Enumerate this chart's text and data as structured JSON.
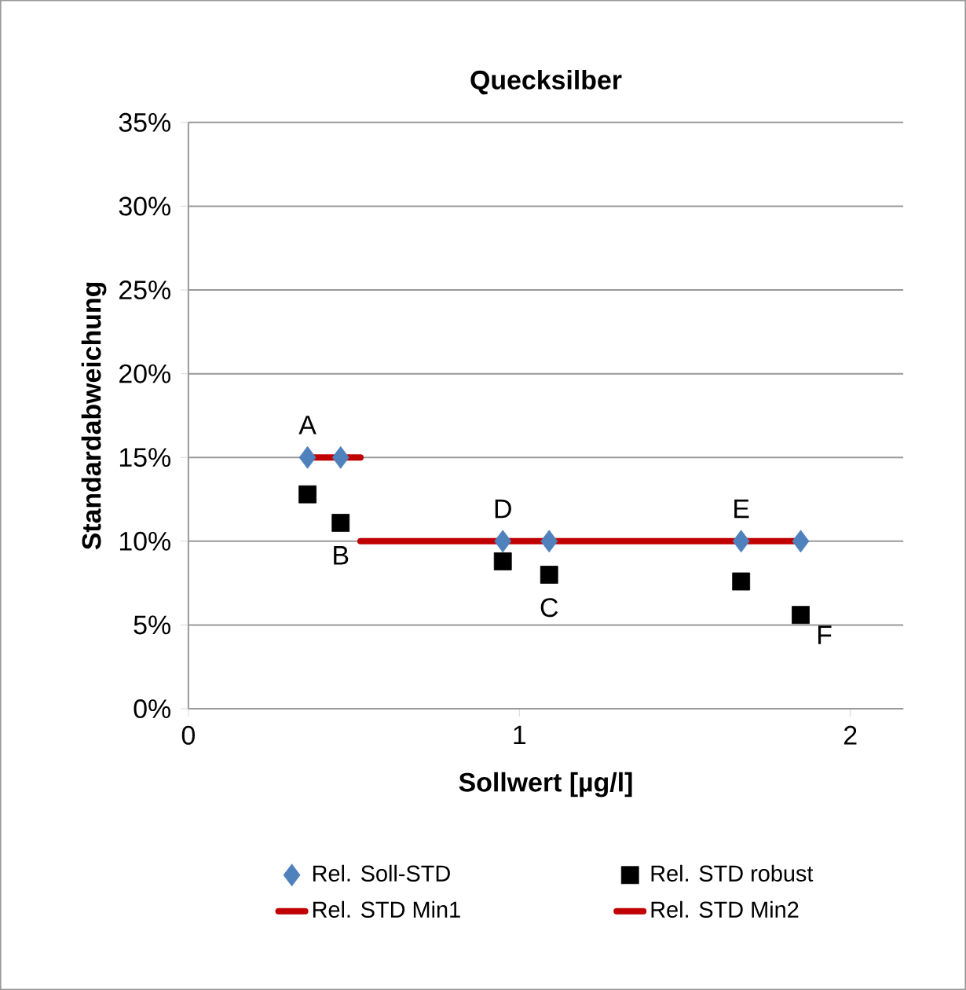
{
  "chart_data": {
    "type": "scatter",
    "title": "Quecksilber",
    "xlabel": "Sollwert [µg/l]",
    "ylabel": "Standardabweichung",
    "xlim": [
      0,
      2.16
    ],
    "xticks": [
      0,
      1,
      2
    ],
    "ylim": [
      0,
      0.35
    ],
    "yticks": [
      {
        "value": 0,
        "label": "0%"
      },
      {
        "value": 0.05,
        "label": "5%"
      },
      {
        "value": 0.1,
        "label": "10%"
      },
      {
        "value": 0.15,
        "label": "15%"
      },
      {
        "value": 0.2,
        "label": "20%"
      },
      {
        "value": 0.25,
        "label": "25%"
      },
      {
        "value": 0.3,
        "label": "30%"
      },
      {
        "value": 0.35,
        "label": "35%"
      }
    ],
    "grid": "y",
    "legend": "bottom",
    "series": [
      {
        "name": "Rel. Soll-STD",
        "marker": "diamond",
        "color": "#4f81bd",
        "x": [
          0.36,
          0.46,
          0.95,
          1.09,
          1.67,
          1.85
        ],
        "values": [
          0.15,
          0.15,
          0.1,
          0.1,
          0.1,
          0.1
        ]
      },
      {
        "name": "Rel. STD robust",
        "marker": "square",
        "color": "#000000",
        "x": [
          0.36,
          0.46,
          0.95,
          1.09,
          1.67,
          1.85
        ],
        "values": [
          0.128,
          0.111,
          0.088,
          0.08,
          0.076,
          0.056
        ]
      },
      {
        "name": "Rel. STD Min1",
        "type": "line",
        "marker": "none",
        "color": "#c00000",
        "x": [
          0.36,
          0.52
        ],
        "values": [
          0.15,
          0.15
        ]
      },
      {
        "name": "Rel. STD Min2",
        "type": "line",
        "marker": "none",
        "color": "#c00000",
        "x": [
          0.52,
          1.86
        ],
        "values": [
          0.1,
          0.1
        ]
      }
    ],
    "annotations": [
      {
        "text": "A",
        "x": 0.36,
        "y": 0.15
      },
      {
        "text": "B",
        "x": 0.46,
        "y": 0.111
      },
      {
        "text": "C",
        "x": 1.09,
        "y": 0.08
      },
      {
        "text": "D",
        "x": 0.95,
        "y": 0.1
      },
      {
        "text": "E",
        "x": 1.67,
        "y": 0.1
      },
      {
        "text": "F",
        "x": 1.85,
        "y": 0.056
      }
    ]
  }
}
